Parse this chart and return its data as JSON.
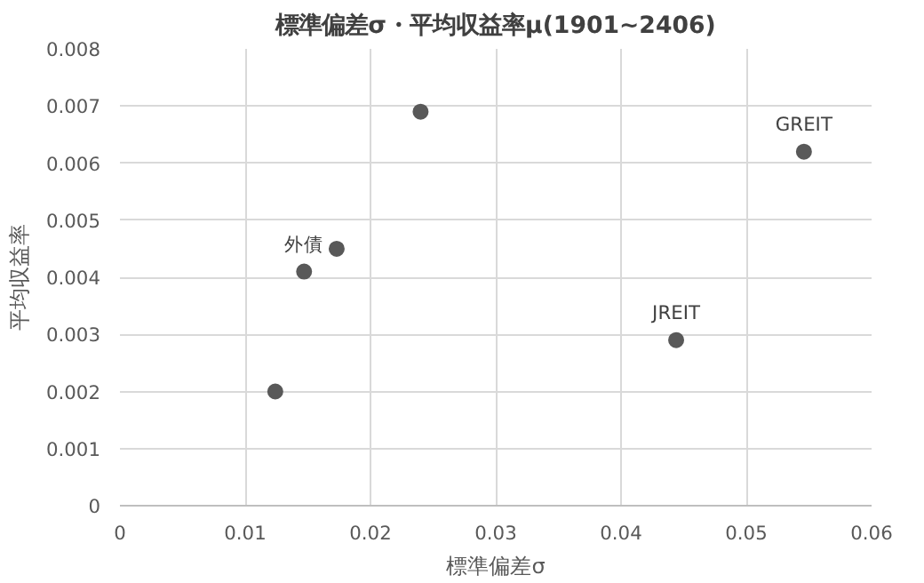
{
  "chart_data": {
    "type": "scatter",
    "title": "標準偏差σ・平均収益率μ(1901~2406)",
    "xlabel": "標準偏差σ",
    "ylabel": "平均収益率",
    "x": [
      0.0124,
      0.0147,
      0.0173,
      0.024,
      0.0444,
      0.0546
    ],
    "series": [
      {
        "color": "#595959",
        "values": [
          0.002,
          0.0041,
          0.0045,
          0.0069,
          0.0029,
          0.0062
        ]
      }
    ],
    "xlim": [
      0,
      0.06
    ],
    "xticks": [
      0,
      0.01,
      0.02,
      0.03,
      0.04,
      0.05,
      0.06
    ],
    "ylim": [
      0,
      0.008
    ],
    "yticks": [
      0,
      0.001,
      0.002,
      0.003,
      0.004,
      0.005,
      0.006,
      0.007,
      0.008
    ],
    "grid": true,
    "marker": "circle",
    "annotations": [
      {
        "text": "外債",
        "x": 0.0147,
        "y": 0.0041
      },
      {
        "text": "JREIT",
        "x": 0.0444,
        "y": 0.0029
      },
      {
        "text": "GREIT",
        "x": 0.0546,
        "y": 0.0062
      }
    ]
  }
}
